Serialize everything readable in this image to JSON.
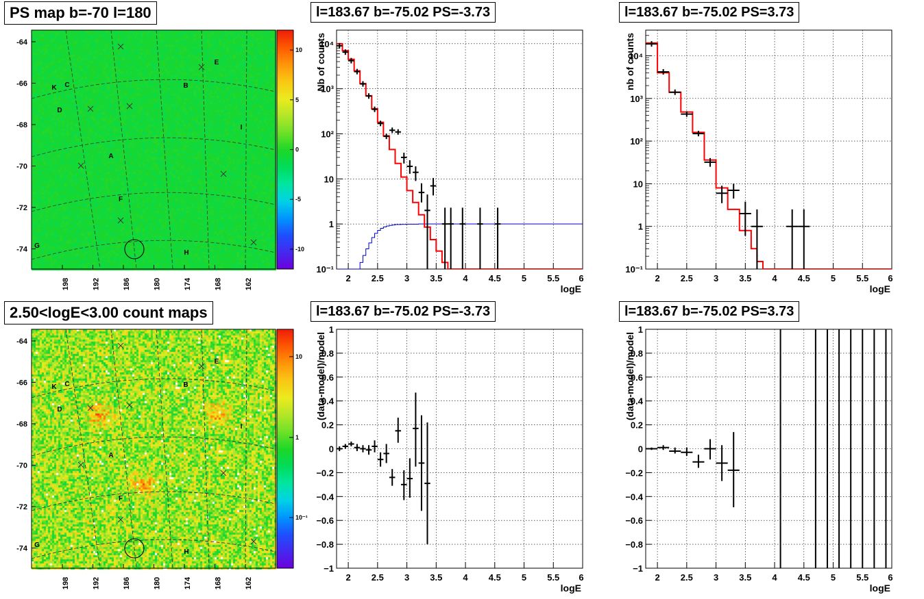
{
  "panels": {
    "map_top": {
      "title": "PS map b=-70 l=180",
      "y_ticks": [
        "-64",
        "-66",
        "-68",
        "-70",
        "-72",
        "-74"
      ],
      "x_ticks": [
        "198",
        "192",
        "186",
        "180",
        "174",
        "168",
        "162"
      ],
      "colorbar_ticks": [
        "10",
        "5",
        "0",
        "-5",
        "-10"
      ],
      "colorbar_range": [
        -12,
        12
      ]
    },
    "map_bottom": {
      "title": "2.50<logE<3.00 count maps",
      "y_ticks": [
        "-64",
        "-66",
        "-68",
        "-70",
        "-72",
        "-74"
      ],
      "x_ticks": [
        "198",
        "192",
        "186",
        "180",
        "174",
        "168",
        "162"
      ],
      "colorbar_ticks": [
        "10",
        "1",
        "10⁻¹"
      ],
      "colorbar_scale": "log"
    },
    "source_labels": [
      "A",
      "B",
      "C",
      "D",
      "E",
      "F",
      "G",
      "H",
      "I",
      "K"
    ]
  },
  "chart_data": [
    {
      "id": "spectrum_left",
      "type": "line",
      "title": "l=183.67 b=-75.02 PS=-3.73",
      "xlabel": "logE",
      "ylabel": "Nb of counts",
      "xlim": [
        1.8,
        6
      ],
      "ylim": [
        0.1,
        20000
      ],
      "yscale": "log",
      "grid": true,
      "x_ticks": [
        "2",
        "2.5",
        "3",
        "3.5",
        "4",
        "4.5",
        "5",
        "5.5",
        "6"
      ],
      "y_ticks": [
        "10⁻¹",
        "1",
        "10",
        "10²",
        "10³",
        "10⁴"
      ],
      "model_color": "#ff0000",
      "exposure_color": "#0000cc",
      "model_step": {
        "edges": [
          1.8,
          1.9,
          2.0,
          2.1,
          2.2,
          2.3,
          2.4,
          2.5,
          2.6,
          2.7,
          2.8,
          2.9,
          3.0,
          3.1,
          3.2,
          3.3,
          3.4,
          3.5,
          3.6,
          3.7,
          3.8,
          3.9,
          4.0,
          6.0
        ],
        "values": [
          10000,
          7000,
          4500,
          2500,
          1300,
          700,
          360,
          180,
          90,
          45,
          22,
          11,
          5.5,
          3,
          1.6,
          0.85,
          0.45,
          0.25,
          0.14,
          0.1,
          0.1,
          0.1,
          0.1
        ]
      },
      "exposure_step": {
        "edges": [
          1.8,
          1.95,
          2.05,
          2.15,
          2.2,
          2.25,
          2.3,
          2.35,
          2.4,
          2.45,
          2.5,
          2.55,
          2.6,
          2.65,
          2.7,
          2.75,
          2.8,
          2.9,
          3.0,
          3.2,
          3.4,
          6.0
        ],
        "values": [
          0.05,
          0.06,
          0.08,
          0.1,
          0.14,
          0.2,
          0.28,
          0.38,
          0.5,
          0.62,
          0.72,
          0.8,
          0.86,
          0.9,
          0.93,
          0.95,
          0.97,
          0.98,
          0.99,
          1.0,
          1.0
        ]
      },
      "data_points": [
        {
          "x": 1.85,
          "y": 9000,
          "ex": 0.05
        },
        {
          "x": 1.95,
          "y": 6500,
          "ex": 0.05
        },
        {
          "x": 2.05,
          "y": 4200,
          "ex": 0.05
        },
        {
          "x": 2.15,
          "y": 2400,
          "ex": 0.05
        },
        {
          "x": 2.25,
          "y": 1280,
          "ex": 0.05
        },
        {
          "x": 2.35,
          "y": 690,
          "ex": 0.05
        },
        {
          "x": 2.45,
          "y": 350,
          "ex": 0.05
        },
        {
          "x": 2.55,
          "y": 170,
          "ex": 0.05
        },
        {
          "x": 2.65,
          "y": 88,
          "ex": 0.05
        },
        {
          "x": 2.75,
          "y": 120,
          "ex": 0.05
        },
        {
          "x": 2.85,
          "y": 110,
          "ex": 0.05
        },
        {
          "x": 2.95,
          "y": 30,
          "ex": 0.05,
          "ey": [
            22,
            38
          ]
        },
        {
          "x": 3.05,
          "y": 19,
          "ex": 0.05,
          "ey": [
            13,
            26
          ]
        },
        {
          "x": 3.15,
          "y": 14,
          "ex": 0.05,
          "ey": [
            9,
            19
          ]
        },
        {
          "x": 3.25,
          "y": 5,
          "ex": 0.05,
          "ey": [
            3,
            8
          ]
        },
        {
          "x": 3.35,
          "y": 2,
          "ex": 0.05,
          "ey": [
            0.1,
            4.5
          ]
        },
        {
          "x": 3.45,
          "y": 7,
          "ex": 0.05,
          "ey": [
            4.3,
            10.5
          ]
        },
        {
          "x": 3.65,
          "y": 1,
          "ex": 0.05,
          "ey": [
            0.1,
            2.3
          ]
        },
        {
          "x": 3.75,
          "y": 1,
          "ex": 0.05,
          "ey": [
            0.1,
            2.3
          ]
        },
        {
          "x": 3.95,
          "y": 1,
          "ex": 0.05,
          "ey": [
            0.1,
            2.3
          ]
        },
        {
          "x": 4.25,
          "y": 1,
          "ex": 0.05,
          "ey": [
            0.1,
            2.3
          ]
        },
        {
          "x": 4.55,
          "y": 1,
          "ex": 0.05,
          "ey": [
            0.1,
            2.3
          ]
        }
      ]
    },
    {
      "id": "spectrum_right",
      "type": "line",
      "title": "l=183.67 b=-75.02 PS=3.73",
      "xlabel": "logE",
      "ylabel": "nb of counts",
      "xlim": [
        1.8,
        6
      ],
      "ylim": [
        0.1,
        40000
      ],
      "yscale": "log",
      "grid": true,
      "x_ticks": [
        "2",
        "2.5",
        "3",
        "3.5",
        "4",
        "4.5",
        "5",
        "5.5",
        "6"
      ],
      "y_ticks": [
        "10⁻¹",
        "1",
        "10",
        "10²",
        "10³",
        "10⁴"
      ],
      "model_color": "#ff0000",
      "model_step": {
        "edges": [
          1.8,
          2.0,
          2.2,
          2.4,
          2.6,
          2.8,
          3.0,
          3.2,
          3.4,
          3.6,
          3.7,
          3.8,
          3.9,
          4.0,
          6.0
        ],
        "values": [
          20000,
          4000,
          1400,
          480,
          160,
          36,
          8,
          2.5,
          0.8,
          0.3,
          0.15,
          0.1,
          0.1,
          0.1
        ]
      },
      "data_points": [
        {
          "x": 1.9,
          "y": 19000,
          "ex": 0.1
        },
        {
          "x": 2.1,
          "y": 4200,
          "ex": 0.1
        },
        {
          "x": 2.3,
          "y": 1400,
          "ex": 0.1
        },
        {
          "x": 2.5,
          "y": 430,
          "ex": 0.1
        },
        {
          "x": 2.7,
          "y": 150,
          "ex": 0.1
        },
        {
          "x": 2.9,
          "y": 32,
          "ex": 0.1,
          "ey": [
            25,
            40
          ]
        },
        {
          "x": 3.1,
          "y": 6,
          "ex": 0.1,
          "ey": [
            3.5,
            9
          ]
        },
        {
          "x": 3.3,
          "y": 7,
          "ex": 0.1,
          "ey": [
            4.5,
            10
          ]
        },
        {
          "x": 3.5,
          "y": 2,
          "ex": 0.1,
          "ey": [
            0.6,
            3.8
          ]
        },
        {
          "x": 3.7,
          "y": 1,
          "ex": 0.1,
          "ey": [
            0.1,
            2.5
          ]
        },
        {
          "x": 4.3,
          "y": 1,
          "ex": 0.1,
          "ey": [
            0.1,
            2.5
          ]
        },
        {
          "x": 4.5,
          "y": 1,
          "ex": 0.1,
          "ey": [
            0.1,
            2.5
          ]
        }
      ]
    },
    {
      "id": "residual_left",
      "type": "scatter",
      "title": "l=183.67 b=-75.02 PS=-3.73",
      "xlabel": "logE",
      "ylabel": "(data-model)/model",
      "xlim": [
        1.8,
        6
      ],
      "ylim": [
        -1,
        1
      ],
      "grid": true,
      "x_ticks": [
        "2",
        "2.5",
        "3",
        "3.5",
        "4",
        "4.5",
        "5",
        "5.5",
        "6"
      ],
      "y_ticks": [
        "−1",
        "−0.8",
        "−0.6",
        "−0.4",
        "−0.2",
        "0",
        "0.2",
        "0.4",
        "0.6",
        "0.8",
        "1"
      ],
      "data_points": [
        {
          "x": 1.85,
          "y": 0.0,
          "ex": 0.05,
          "ey": [
            -0.02,
            0.02
          ]
        },
        {
          "x": 1.95,
          "y": 0.02,
          "ex": 0.05,
          "ey": [
            0.0,
            0.04
          ]
        },
        {
          "x": 2.05,
          "y": 0.04,
          "ex": 0.05,
          "ey": [
            0.02,
            0.06
          ]
        },
        {
          "x": 2.15,
          "y": 0.01,
          "ex": 0.05,
          "ey": [
            -0.02,
            0.04
          ]
        },
        {
          "x": 2.25,
          "y": 0.0,
          "ex": 0.05,
          "ey": [
            -0.03,
            0.03
          ]
        },
        {
          "x": 2.35,
          "y": -0.01,
          "ex": 0.05,
          "ey": [
            -0.05,
            0.03
          ]
        },
        {
          "x": 2.45,
          "y": 0.02,
          "ex": 0.05,
          "ey": [
            -0.03,
            0.07
          ]
        },
        {
          "x": 2.55,
          "y": -0.09,
          "ex": 0.05,
          "ey": [
            -0.15,
            -0.03
          ]
        },
        {
          "x": 2.65,
          "y": -0.04,
          "ex": 0.05,
          "ey": [
            -0.12,
            0.04
          ]
        },
        {
          "x": 2.75,
          "y": -0.24,
          "ex": 0.05,
          "ey": [
            -0.31,
            -0.17
          ]
        },
        {
          "x": 2.85,
          "y": 0.15,
          "ex": 0.05,
          "ey": [
            0.05,
            0.26
          ]
        },
        {
          "x": 2.95,
          "y": -0.3,
          "ex": 0.05,
          "ey": [
            -0.43,
            -0.18
          ]
        },
        {
          "x": 3.05,
          "y": -0.25,
          "ex": 0.05,
          "ey": [
            -0.41,
            -0.08
          ]
        },
        {
          "x": 3.15,
          "y": 0.17,
          "ex": 0.05,
          "ey": [
            -0.15,
            0.47
          ]
        },
        {
          "x": 3.25,
          "y": -0.12,
          "ex": 0.05,
          "ey": [
            -0.52,
            0.28
          ]
        },
        {
          "x": 3.35,
          "y": -0.29,
          "ex": 0.05,
          "ey": [
            -0.8,
            0.22
          ]
        }
      ]
    },
    {
      "id": "residual_right",
      "type": "scatter",
      "title": "l=183.67 b=-75.02 PS=3.73",
      "xlabel": "logE",
      "ylabel": "(data-model)/model",
      "xlim": [
        1.8,
        6
      ],
      "ylim": [
        -1,
        1
      ],
      "grid": true,
      "x_ticks": [
        "2",
        "2.5",
        "3",
        "3.5",
        "4",
        "4.5",
        "5",
        "5.5",
        "6"
      ],
      "y_ticks": [
        "−1",
        "−0.8",
        "−0.6",
        "−0.4",
        "−0.2",
        "0",
        "0.2",
        "0.4",
        "0.6",
        "0.8",
        "1"
      ],
      "data_points": [
        {
          "x": 1.9,
          "y": 0.0,
          "ex": 0.1,
          "ey": [
            -0.01,
            0.01
          ]
        },
        {
          "x": 2.1,
          "y": 0.01,
          "ex": 0.1,
          "ey": [
            -0.01,
            0.03
          ]
        },
        {
          "x": 2.3,
          "y": -0.02,
          "ex": 0.1,
          "ey": [
            -0.04,
            0.01
          ]
        },
        {
          "x": 2.5,
          "y": -0.03,
          "ex": 0.1,
          "ey": [
            -0.06,
            0.01
          ]
        },
        {
          "x": 2.7,
          "y": -0.11,
          "ex": 0.1,
          "ey": [
            -0.16,
            -0.05
          ]
        },
        {
          "x": 2.9,
          "y": 0.0,
          "ex": 0.1,
          "ey": [
            -0.09,
            0.08
          ]
        },
        {
          "x": 3.1,
          "y": -0.12,
          "ex": 0.1,
          "ey": [
            -0.27,
            0.03
          ]
        },
        {
          "x": 3.3,
          "y": -0.18,
          "ex": 0.1,
          "ey": [
            -0.49,
            0.14
          ]
        }
      ],
      "vertical_lines_x": [
        4.1,
        4.7,
        4.9,
        5.1,
        5.3,
        5.5,
        5.7,
        5.9
      ]
    }
  ]
}
